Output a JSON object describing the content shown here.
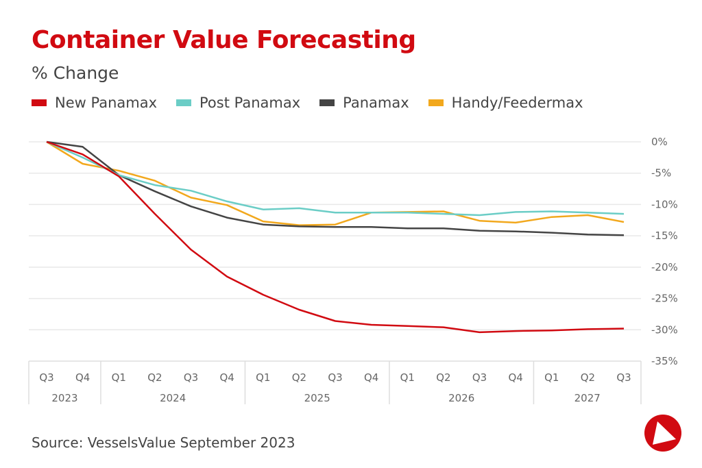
{
  "title": "Container Value Forecasting",
  "subtitle": "% Change",
  "source": "Source: VesselsValue September 2023",
  "logo": "vesselsvalue-logo",
  "chart_data": {
    "type": "line",
    "title": "Container Value Forecasting",
    "ylabel": "% Change",
    "ylim": [
      -35,
      0
    ],
    "yticks": [
      "0%",
      "-5%",
      "-10%",
      "-15%",
      "-20%",
      "-25%",
      "-30%",
      "-35%"
    ],
    "ytick_values": [
      0,
      -5,
      -10,
      -15,
      -20,
      -25,
      -30,
      -35
    ],
    "grid": true,
    "legend": "top",
    "x_quarters": [
      "Q3",
      "Q4",
      "Q1",
      "Q2",
      "Q3",
      "Q4",
      "Q1",
      "Q2",
      "Q3",
      "Q4",
      "Q1",
      "Q2",
      "Q3",
      "Q4",
      "Q1",
      "Q2",
      "Q3"
    ],
    "x_years": [
      {
        "label": "2023",
        "span": 2
      },
      {
        "label": "2024",
        "span": 4
      },
      {
        "label": "2025",
        "span": 4
      },
      {
        "label": "2026",
        "span": 4
      },
      {
        "label": "2027",
        "span": 3
      }
    ],
    "series": [
      {
        "name": "New Panamax",
        "color": "#d10a11",
        "values": [
          0,
          -2.0,
          -5.5,
          -11.5,
          -17.2,
          -21.5,
          -24.4,
          -26.8,
          -28.6,
          -29.2,
          -29.4,
          -29.6,
          -30.4,
          -30.2,
          -30.1,
          -29.9,
          -29.8
        ]
      },
      {
        "name": "Post Panamax",
        "color": "#6bcdc6",
        "values": [
          0,
          -2.5,
          -5.3,
          -6.9,
          -7.8,
          -9.5,
          -10.8,
          -10.6,
          -11.3,
          -11.3,
          -11.3,
          -11.5,
          -11.7,
          -11.2,
          -11.1,
          -11.3,
          -11.5
        ]
      },
      {
        "name": "Panamax",
        "color": "#444444",
        "values": [
          0,
          -0.8,
          -5.3,
          -7.9,
          -10.3,
          -12.1,
          -13.2,
          -13.5,
          -13.6,
          -13.6,
          -13.8,
          -13.8,
          -14.2,
          -14.3,
          -14.5,
          -14.8,
          -14.9
        ]
      },
      {
        "name": "Handy/Feedermax",
        "color": "#f2a81d",
        "values": [
          0,
          -3.5,
          -4.6,
          -6.2,
          -8.9,
          -10.1,
          -12.7,
          -13.3,
          -13.2,
          -11.3,
          -11.2,
          -11.1,
          -12.6,
          -12.9,
          -12.0,
          -11.7,
          -12.8
        ]
      }
    ]
  }
}
